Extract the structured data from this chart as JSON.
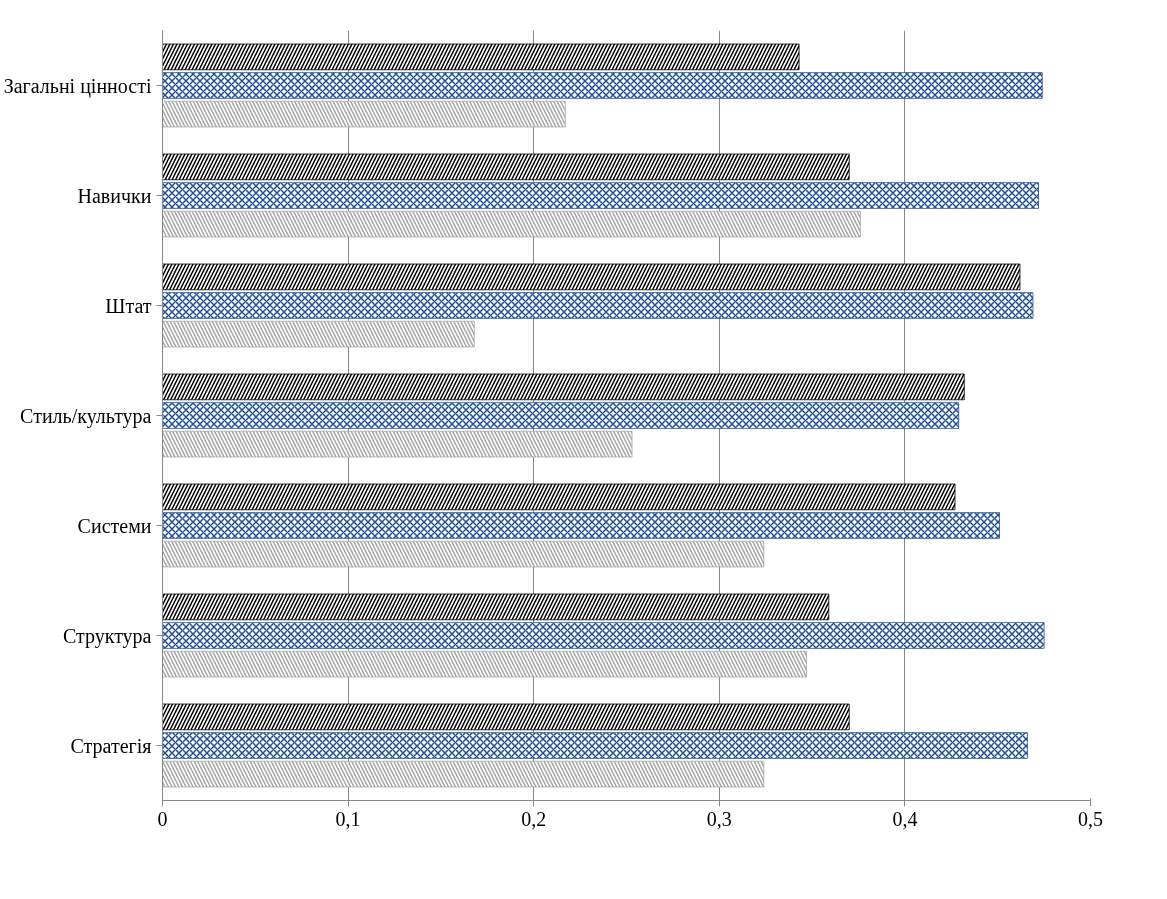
{
  "chart_data": {
    "type": "bar",
    "orientation": "horizontal",
    "categories": [
      "Загальні цінності",
      "Навички",
      "Штат",
      "Стиль/культура",
      "Системи",
      "Структура",
      "Стратегія"
    ],
    "series": [
      {
        "color": "#000000",
        "values": [
          0.343,
          0.37,
          0.462,
          0.432,
          0.427,
          0.359,
          0.37
        ]
      },
      {
        "color": "#1f4e9a",
        "values": [
          0.474,
          0.472,
          0.469,
          0.429,
          0.451,
          0.475,
          0.466
        ]
      },
      {
        "color": "#a6a6a6",
        "values": [
          0.217,
          0.376,
          0.168,
          0.253,
          0.324,
          0.347,
          0.324
        ]
      }
    ],
    "xlim": [
      0,
      0.5
    ],
    "xticks": [
      0,
      {
        "value": 0.1,
        "label": "0,1"
      },
      {
        "value": 0.2,
        "label": "0,2"
      },
      {
        "value": 0.3,
        "label": "0,3"
      },
      {
        "value": 0.4,
        "label": "0,4"
      },
      {
        "value": 0.5,
        "label": "0,5"
      }
    ],
    "grid": "x"
  }
}
